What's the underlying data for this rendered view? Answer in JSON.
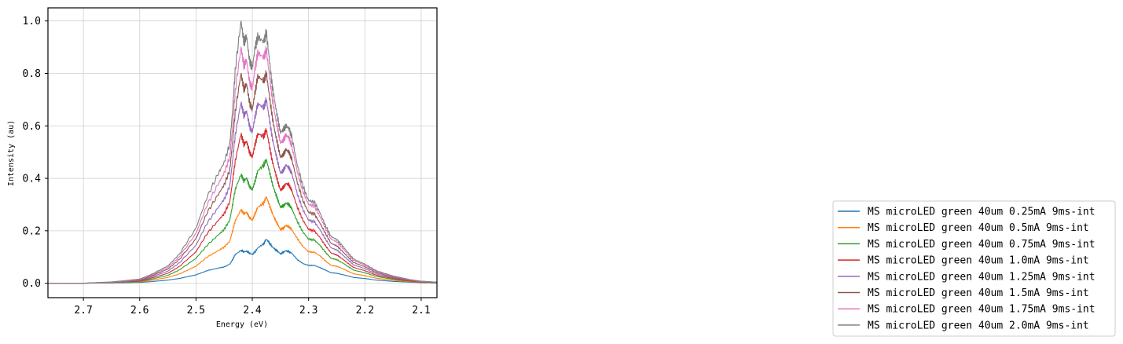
{
  "chart_data": {
    "type": "line",
    "title": "",
    "xlabel": "Energy (eV)",
    "ylabel": "Intensity (au)",
    "xlim": [
      2.763,
      2.072
    ],
    "ylim": [
      -0.055,
      1.05
    ],
    "x_inverted": true,
    "grid": true,
    "legend_position": "right, outside plot",
    "xticks": [
      2.7,
      2.6,
      2.5,
      2.4,
      2.3,
      2.2,
      2.1
    ],
    "xtick_labels": [
      "2.7",
      "2.6",
      "2.5",
      "2.4",
      "2.3",
      "2.2",
      "2.1"
    ],
    "yticks": [
      0.0,
      0.2,
      0.4,
      0.6,
      0.8,
      1.0
    ],
    "ytick_labels": [
      "0.0",
      "0.2",
      "0.4",
      "0.6",
      "0.8",
      "1.0"
    ],
    "x": [
      2.763,
      2.7,
      2.65,
      2.6,
      2.58,
      2.55,
      2.53,
      2.5,
      2.48,
      2.46,
      2.45,
      2.44,
      2.435,
      2.43,
      2.42,
      2.415,
      2.41,
      2.405,
      2.4,
      2.395,
      2.39,
      2.38,
      2.375,
      2.37,
      2.365,
      2.36,
      2.355,
      2.35,
      2.345,
      2.34,
      2.335,
      2.33,
      2.32,
      2.31,
      2.3,
      2.29,
      2.28,
      2.27,
      2.26,
      2.25,
      2.24,
      2.23,
      2.22,
      2.2,
      2.18,
      2.15,
      2.12,
      2.1,
      2.072
    ],
    "series": [
      {
        "name": "MS microLED green 40um 0.25mA 9ms-int",
        "color": "#1f77b4",
        "values": [
          0.0,
          0.0,
          0.001,
          0.003,
          0.006,
          0.012,
          0.018,
          0.032,
          0.048,
          0.058,
          0.062,
          0.073,
          0.09,
          0.11,
          0.125,
          0.12,
          0.122,
          0.115,
          0.11,
          0.12,
          0.135,
          0.15,
          0.168,
          0.155,
          0.14,
          0.13,
          0.122,
          0.112,
          0.118,
          0.124,
          0.12,
          0.115,
          0.09,
          0.075,
          0.068,
          0.068,
          0.06,
          0.05,
          0.04,
          0.038,
          0.033,
          0.028,
          0.022,
          0.018,
          0.012,
          0.007,
          0.004,
          0.002,
          0.001
        ]
      },
      {
        "name": "MS microLED green 40um 0.5mA 9ms-int",
        "color": "#ff7f0e",
        "values": [
          0.0,
          0.0,
          0.002,
          0.005,
          0.011,
          0.022,
          0.035,
          0.065,
          0.1,
          0.125,
          0.138,
          0.16,
          0.2,
          0.24,
          0.28,
          0.265,
          0.27,
          0.25,
          0.24,
          0.265,
          0.29,
          0.305,
          0.33,
          0.3,
          0.27,
          0.245,
          0.225,
          0.205,
          0.21,
          0.22,
          0.215,
          0.205,
          0.17,
          0.14,
          0.12,
          0.118,
          0.105,
          0.085,
          0.068,
          0.065,
          0.056,
          0.046,
          0.036,
          0.029,
          0.019,
          0.011,
          0.006,
          0.003,
          0.002
        ]
      },
      {
        "name": "MS microLED green 40um 0.75mA 9ms-int",
        "color": "#2ca02c",
        "values": [
          0.0,
          0.0,
          0.002,
          0.007,
          0.015,
          0.03,
          0.05,
          0.095,
          0.145,
          0.185,
          0.205,
          0.24,
          0.3,
          0.36,
          0.415,
          0.39,
          0.4,
          0.37,
          0.355,
          0.39,
          0.43,
          0.45,
          0.47,
          0.43,
          0.385,
          0.35,
          0.32,
          0.29,
          0.295,
          0.305,
          0.3,
          0.285,
          0.235,
          0.195,
          0.168,
          0.165,
          0.145,
          0.118,
          0.095,
          0.09,
          0.078,
          0.064,
          0.05,
          0.04,
          0.026,
          0.015,
          0.008,
          0.004,
          0.002
        ]
      },
      {
        "name": "MS microLED green 40um 1.0mA 9ms-int",
        "color": "#d62728",
        "values": [
          0.0,
          0.0,
          0.003,
          0.009,
          0.019,
          0.038,
          0.063,
          0.12,
          0.19,
          0.24,
          0.265,
          0.31,
          0.39,
          0.47,
          0.57,
          0.53,
          0.54,
          0.5,
          0.48,
          0.53,
          0.57,
          0.56,
          0.585,
          0.53,
          0.47,
          0.43,
          0.39,
          0.355,
          0.365,
          0.38,
          0.375,
          0.355,
          0.29,
          0.24,
          0.205,
          0.2,
          0.175,
          0.143,
          0.115,
          0.108,
          0.093,
          0.076,
          0.06,
          0.048,
          0.031,
          0.018,
          0.009,
          0.005,
          0.003
        ]
      },
      {
        "name": "MS microLED green 40um 1.25mA 9ms-int",
        "color": "#9467bd",
        "values": [
          0.0,
          0.0,
          0.003,
          0.011,
          0.023,
          0.046,
          0.077,
          0.145,
          0.23,
          0.29,
          0.32,
          0.37,
          0.47,
          0.57,
          0.69,
          0.64,
          0.655,
          0.6,
          0.575,
          0.635,
          0.685,
          0.67,
          0.7,
          0.63,
          0.56,
          0.51,
          0.465,
          0.42,
          0.43,
          0.45,
          0.44,
          0.42,
          0.34,
          0.28,
          0.24,
          0.235,
          0.205,
          0.168,
          0.135,
          0.127,
          0.109,
          0.089,
          0.07,
          0.056,
          0.036,
          0.021,
          0.011,
          0.006,
          0.003
        ]
      },
      {
        "name": "MS microLED green 40um 1.5mA 9ms-int",
        "color": "#8c564b",
        "values": [
          0.0,
          0.0,
          0.004,
          0.013,
          0.027,
          0.054,
          0.09,
          0.17,
          0.27,
          0.34,
          0.375,
          0.43,
          0.54,
          0.66,
          0.8,
          0.74,
          0.76,
          0.69,
          0.66,
          0.73,
          0.79,
          0.77,
          0.8,
          0.72,
          0.64,
          0.58,
          0.53,
          0.48,
          0.49,
          0.51,
          0.5,
          0.475,
          0.385,
          0.315,
          0.27,
          0.265,
          0.23,
          0.19,
          0.152,
          0.143,
          0.122,
          0.1,
          0.079,
          0.063,
          0.041,
          0.024,
          0.012,
          0.007,
          0.004
        ]
      },
      {
        "name": "MS microLED green 40um 1.75mA 9ms-int",
        "color": "#e377c2",
        "values": [
          0.0,
          0.0,
          0.004,
          0.014,
          0.03,
          0.06,
          0.1,
          0.19,
          0.3,
          0.38,
          0.42,
          0.48,
          0.6,
          0.74,
          0.9,
          0.83,
          0.85,
          0.77,
          0.74,
          0.82,
          0.88,
          0.86,
          0.89,
          0.8,
          0.71,
          0.645,
          0.59,
          0.535,
          0.545,
          0.565,
          0.555,
          0.525,
          0.425,
          0.35,
          0.3,
          0.295,
          0.255,
          0.21,
          0.168,
          0.158,
          0.135,
          0.11,
          0.087,
          0.069,
          0.045,
          0.026,
          0.013,
          0.007,
          0.004
        ]
      },
      {
        "name": "MS microLED green 40um 2.0mA 9ms-int",
        "color": "#7f7f7f",
        "values": [
          0.0,
          0.0,
          0.005,
          0.016,
          0.033,
          0.066,
          0.11,
          0.21,
          0.33,
          0.42,
          0.46,
          0.53,
          0.66,
          0.82,
          1.0,
          0.92,
          0.94,
          0.85,
          0.82,
          0.9,
          0.94,
          0.92,
          0.955,
          0.86,
          0.76,
          0.69,
          0.63,
          0.575,
          0.585,
          0.6,
          0.59,
          0.56,
          0.45,
          0.37,
          0.315,
          0.31,
          0.27,
          0.22,
          0.178,
          0.167,
          0.143,
          0.117,
          0.092,
          0.073,
          0.048,
          0.028,
          0.014,
          0.008,
          0.004
        ]
      }
    ]
  }
}
